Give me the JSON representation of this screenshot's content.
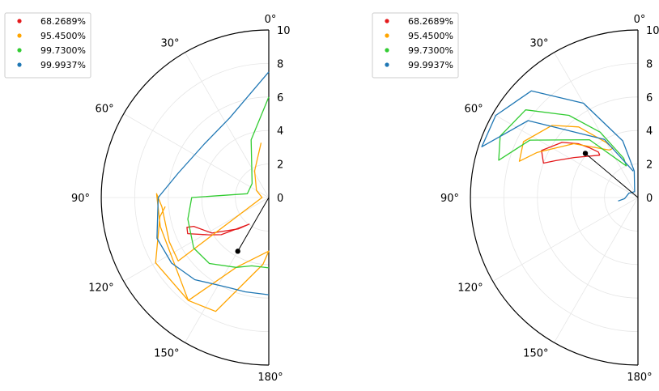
{
  "chart_data": [
    {
      "type": "polar-contour",
      "theta_range_deg": [
        0,
        180
      ],
      "theta_ticks": [
        "0°",
        "30°",
        "60°",
        "90°",
        "120°",
        "150°",
        "180°"
      ],
      "r_ticks": [
        "0",
        "2",
        "4",
        "6",
        "8",
        "10"
      ],
      "rlim": [
        0,
        10
      ],
      "grid": true,
      "legend_position": "top-left",
      "legend": [
        {
          "label": "68.2689%",
          "color": "#e41a1c"
        },
        {
          "label": "95.4500%",
          "color": "#ffa500"
        },
        {
          "label": "99.7300%",
          "color": "#33cc33"
        },
        {
          "label": "99.9937%",
          "color": "#1f77b4"
        }
      ],
      "center_point": {
        "theta_deg": 150,
        "r": 3.7
      },
      "contours": [
        {
          "name": "68.2689%",
          "color": "#e41a1c",
          "points": [
            [
              144,
              1.95
            ],
            [
              135,
              2.6
            ],
            [
              128,
              3.6
            ],
            [
              122,
              4.2
            ],
            [
              114,
              5.3
            ],
            [
              110,
              5.2
            ],
            [
              111,
              4.8
            ],
            [
              122,
              4.0
            ],
            [
              136,
              2.6
            ],
            [
              144,
              1.95
            ]
          ]
        },
        {
          "name": "95.4500%",
          "color": "#ffa500",
          "points": [
            [
              8,
              3.3
            ],
            [
              28,
              1.8
            ],
            [
              60,
              0.85
            ],
            [
              90,
              0.4
            ],
            [
              125,
              6.6
            ],
            [
              114,
              6.5
            ],
            [
              95,
              6.4
            ],
            [
              88,
              6.7
            ],
            [
              105,
              6.7
            ],
            [
              142,
              7.8
            ],
            [
              155,
              4.6
            ],
            [
              180,
              3.2
            ],
            [
              175,
              4.0
            ],
            [
              155,
              7.5
            ],
            [
              142,
              7.8
            ],
            [
              120,
              7.8
            ],
            [
              100,
              6.6
            ],
            [
              95,
              6.2
            ]
          ]
        },
        {
          "name": "99.7300%",
          "color": "#33cc33",
          "points": [
            [
              0,
              6.0
            ],
            [
              17,
              3.6
            ],
            [
              50,
              1.3
            ],
            [
              80,
              1.3
            ],
            [
              90,
              4.6
            ],
            [
              105,
              5.0
            ],
            [
              124,
              5.4
            ],
            [
              138,
              5.3
            ],
            [
              155,
              4.6
            ],
            [
              166,
              4.2
            ],
            [
              180,
              4.2
            ]
          ]
        },
        {
          "name": "99.9937%",
          "color": "#1f77b4",
          "points": [
            [
              0,
              7.5
            ],
            [
              26,
              5.3
            ],
            [
              50,
              5.0
            ],
            [
              75,
              5.6
            ],
            [
              90,
              6.6
            ],
            [
              110,
              7.1
            ],
            [
              124,
              7.0
            ],
            [
              138,
              6.6
            ],
            [
              155,
              5.9
            ],
            [
              166,
              5.8
            ],
            [
              180,
              5.8
            ]
          ]
        }
      ]
    },
    {
      "type": "polar-contour",
      "theta_range_deg": [
        0,
        180
      ],
      "theta_ticks": [
        "0°",
        "30°",
        "60°",
        "90°",
        "120°",
        "150°",
        "180°"
      ],
      "r_ticks": [
        "0",
        "2",
        "4",
        "6",
        "8",
        "10"
      ],
      "rlim": [
        0,
        10
      ],
      "grid": true,
      "legend_position": "top-left",
      "legend": [
        {
          "label": "68.2689%",
          "color": "#e41a1c"
        },
        {
          "label": "95.4500%",
          "color": "#ffa500"
        },
        {
          "label": "99.7300%",
          "color": "#33cc33"
        },
        {
          "label": "99.9937%",
          "color": "#1f77b4"
        }
      ],
      "center_point": {
        "theta_deg": 50,
        "r": 4.1
      },
      "contours": [
        {
          "name": "68.2689%",
          "color": "#e41a1c",
          "points": [
            [
              42,
              3.4
            ],
            [
              58,
              4.5
            ],
            [
              66,
              5.4
            ],
            [
              70,
              6.0
            ],
            [
              64,
              6.4
            ],
            [
              54,
              5.6
            ],
            [
              48,
              4.8
            ],
            [
              44,
              4.1
            ],
            [
              41,
              3.6
            ],
            [
              42,
              3.4
            ]
          ]
        },
        {
          "name": "95.4500%",
          "color": "#ffa500",
          "points": [
            [
              31,
              3.3
            ],
            [
              50,
              5.0
            ],
            [
              66,
              6.6
            ],
            [
              73,
              7.4
            ],
            [
              64,
              7.6
            ],
            [
              50,
              6.7
            ],
            [
              40,
              5.5
            ],
            [
              30,
              3.8
            ],
            [
              27,
              3.3
            ],
            [
              31,
              3.3
            ]
          ]
        },
        {
          "name": "99.7300%",
          "color": "#33cc33",
          "points": [
            [
              20,
              2.0
            ],
            [
              40,
              4.5
            ],
            [
              62,
              7.3
            ],
            [
              75,
              8.6
            ],
            [
              66,
              9.0
            ],
            [
              52,
              8.5
            ],
            [
              40,
              6.4
            ],
            [
              30,
              4.5
            ],
            [
              20,
              2.5
            ],
            [
              20,
              2.0
            ]
          ]
        },
        {
          "name": "99.9937%",
          "color": "#1f77b4",
          "points": [
            [
              10,
              1.6
            ],
            [
              30,
              4.0
            ],
            [
              55,
              8.0
            ],
            [
              72,
              9.8
            ],
            [
              60,
              9.8
            ],
            [
              45,
              9.0
            ],
            [
              30,
              6.5
            ],
            [
              15,
              3.5
            ],
            [
              8,
              1.6
            ],
            [
              30,
              0.4
            ],
            [
              65,
              0.6
            ],
            [
              95,
              0.8
            ],
            [
              100,
              1.2
            ]
          ]
        }
      ]
    }
  ]
}
